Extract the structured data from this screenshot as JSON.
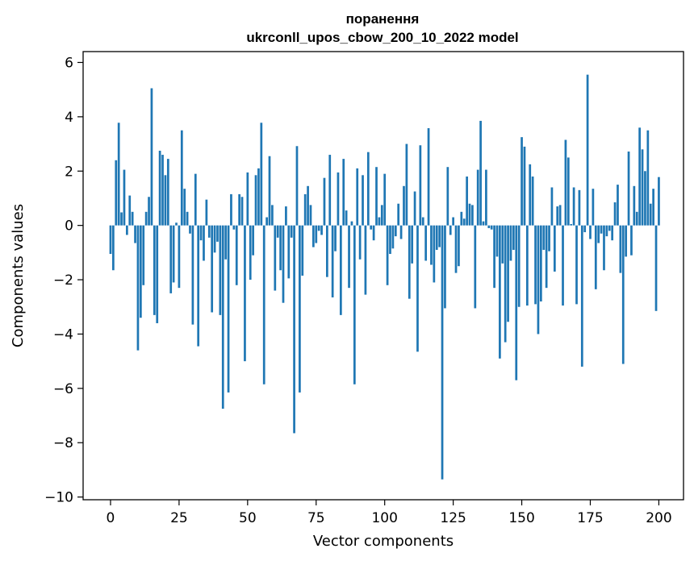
{
  "chart_data": {
    "type": "bar",
    "title": "поранення",
    "subtitle": "ukrconll_upos_cbow_200_10_2022 model",
    "xlabel": "Vector components",
    "ylabel": "Components values",
    "xlim": [
      -10,
      209
    ],
    "ylim": [
      -10.1,
      6.4
    ],
    "xticks": [
      0,
      25,
      50,
      75,
      100,
      125,
      150,
      175,
      200
    ],
    "yticks": [
      -10,
      -8,
      -6,
      -4,
      -2,
      0,
      2,
      4,
      6
    ],
    "grid": false,
    "bar_color": "#1f77b4",
    "series": [
      {
        "values": [
          -1.05,
          -1.65,
          2.4,
          3.78,
          0.48,
          2.05,
          -0.35,
          1.1,
          0.5,
          -0.65,
          -4.6,
          -3.4,
          -2.2,
          0.5,
          1.05,
          5.05,
          -3.3,
          -3.6,
          2.75,
          2.6,
          1.85,
          2.45,
          -2.5,
          -2.1,
          0.1,
          -2.3,
          3.5,
          1.35,
          0.5,
          -0.3,
          -3.65,
          1.9,
          -4.45,
          -0.55,
          -1.3,
          0.95,
          -0.45,
          -3.2,
          -1.0,
          -0.6,
          -3.3,
          -6.75,
          -1.25,
          -6.15,
          1.15,
          -0.15,
          -2.2,
          1.15,
          1.05,
          -5.0,
          1.95,
          -2.0,
          -1.1,
          1.85,
          2.1,
          3.78,
          -5.85,
          0.3,
          2.55,
          0.75,
          -2.4,
          -0.45,
          -1.65,
          -2.85,
          0.7,
          -1.95,
          -0.45,
          -7.65,
          2.92,
          -6.15,
          -1.85,
          1.15,
          1.45,
          0.75,
          -0.8,
          -0.65,
          -0.2,
          -0.35,
          1.75,
          -1.9,
          2.6,
          -2.65,
          -0.95,
          1.95,
          -3.3,
          2.45,
          0.55,
          -2.3,
          0.15,
          -5.85,
          2.1,
          -1.25,
          1.85,
          -2.55,
          2.7,
          -0.15,
          -0.55,
          2.15,
          0.3,
          0.75,
          1.9,
          -2.2,
          -1.05,
          -0.85,
          -0.4,
          0.8,
          -0.5,
          1.45,
          3.0,
          -2.7,
          -1.4,
          1.25,
          -4.65,
          2.95,
          0.3,
          -1.3,
          3.58,
          -1.45,
          -2.1,
          -0.9,
          -0.8,
          -9.35,
          -3.05,
          2.15,
          -0.35,
          0.3,
          -1.75,
          -1.5,
          0.5,
          0.25,
          1.8,
          0.8,
          0.75,
          -3.05,
          2.05,
          3.85,
          0.15,
          2.05,
          -0.1,
          -0.15,
          -2.3,
          -1.15,
          -4.9,
          -1.4,
          -4.3,
          -3.55,
          -1.3,
          -0.9,
          -5.7,
          -3.0,
          3.25,
          2.9,
          -2.95,
          2.25,
          1.8,
          -2.9,
          -4.0,
          -2.8,
          -0.9,
          -2.3,
          -0.95,
          1.4,
          -1.7,
          0.7,
          0.75,
          -2.95,
          3.15,
          2.5,
          0.05,
          1.4,
          -2.9,
          1.3,
          -5.2,
          -0.25,
          5.55,
          -0.5,
          1.35,
          -2.35,
          -0.65,
          -0.3,
          -1.65,
          -0.4,
          -0.2,
          -0.55,
          0.85,
          1.5,
          -1.75,
          -5.1,
          -1.15,
          2.72,
          -1.1,
          1.45,
          0.5,
          3.6,
          2.8,
          2.0,
          3.5,
          0.8,
          1.35,
          -3.15,
          1.78
        ]
      }
    ]
  }
}
